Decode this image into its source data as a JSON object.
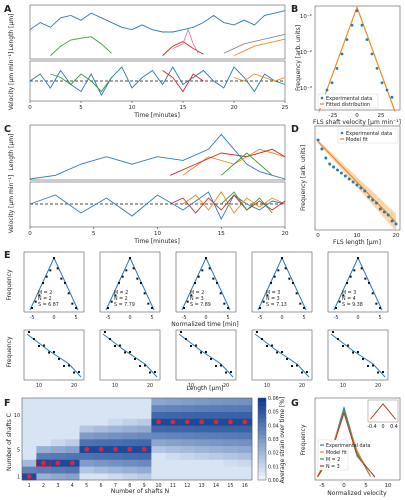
{
  "figure": {
    "panel_labels": [
      "A",
      "B",
      "C",
      "D",
      "E",
      "F",
      "G"
    ],
    "panel_a": {
      "ylabel_top": "Length [μm]",
      "ylabel_bottom": "Velocity [μm min⁻¹]",
      "xlabel": "Time [minutes]",
      "xticks": [
        "0",
        "5",
        "10",
        "15",
        "20",
        "25"
      ]
    },
    "panel_b": {
      "ylabel": "Frequency [arb. units]",
      "xlabel": "FLS shaft velocity [μm min⁻¹]",
      "xticks": [
        "-25",
        "0",
        "25"
      ],
      "yticks": [
        "10⁻¹",
        "10⁻²",
        "10⁻³"
      ],
      "legend": [
        "Experimental data",
        "Fitted distribution"
      ]
    },
    "panel_c": {
      "ylabel_top": "Length [μm]",
      "ylabel_bottom": "Velocity [μm min⁻¹]",
      "xlabel": "Time [minutes]",
      "xticks": [
        "0",
        "5",
        "10",
        "15",
        "20"
      ]
    },
    "panel_d": {
      "ylabel": "Frequency [arb. units]",
      "xlabel": "FLS length [μm]",
      "xticks": [
        "0",
        "10",
        "20"
      ],
      "legend": [
        "Experimental data",
        "Model fit"
      ]
    },
    "panel_e": {
      "ylabel_top": "Frequency",
      "xlabel_top": "Normalized time [min]",
      "ylabel_bottom": "Frequency",
      "xlabel_bottom": "Length [μm]",
      "xticks_top": [
        "-5",
        "0",
        "5"
      ],
      "xticks_bottom": [
        "10",
        "20"
      ],
      "stats": [
        {
          "m": "M = 2",
          "n": "N = 2",
          "s": "S = 6.87"
        },
        {
          "m": "M = 2",
          "n": "N = 2",
          "s": "S = 7.79"
        },
        {
          "m": "M = 2",
          "n": "N = 3",
          "s": "S = 7.89"
        },
        {
          "m": "M = 3",
          "n": "N = 3",
          "s": "S = 7.13"
        },
        {
          "m": "M = 3",
          "n": "N = 4",
          "s": "S = 9.38"
        }
      ]
    },
    "panel_f": {
      "ylabel": "Number of shafts C",
      "xlabel": "Number of shafts N",
      "yticks": [
        "1",
        "5",
        "10"
      ],
      "xticks": [
        "1",
        "2",
        "3",
        "4",
        "5",
        "6",
        "7",
        "8",
        "9",
        "10",
        "11",
        "12",
        "13",
        "14",
        "15",
        "16"
      ],
      "colorbar_ticks": [
        "0.06",
        "0.05",
        "0.04",
        "0.03",
        "0.02",
        "0.01",
        "0.00"
      ],
      "colorbar_label": "Average strain over time [%]"
    },
    "panel_g": {
      "ylabel": "Frequency",
      "xlabel": "Normalized velocity",
      "xticks": [
        "-5",
        "0",
        "5",
        "10"
      ],
      "legend": [
        "Experimental data",
        "Model fit",
        "M = 2",
        "N = 3"
      ],
      "inset_xticks": [
        "-0.4",
        "0",
        "0.4"
      ]
    }
  },
  "colors": {
    "blue": "#2a7bb5",
    "orange": "#f08a1c",
    "red": "#cf2a2a",
    "green": "#3a9d3a",
    "pink": "#e07aa4",
    "grey": "#8a8a8a",
    "heatmap_low": "#e9f2fb",
    "heatmap_high": "#0b3d91",
    "marker": "#e0253a"
  },
  "chart_data": [
    {
      "type": "line",
      "panel": "A-top",
      "x_range": [
        0,
        25
      ],
      "series": [
        {
          "color": "blue",
          "x": [
            0,
            1,
            2,
            3,
            4,
            5,
            6,
            7,
            8,
            9,
            10,
            11,
            12,
            13,
            14,
            15,
            16,
            17,
            18,
            19,
            20,
            21,
            22,
            23,
            24,
            25
          ],
          "y": [
            6,
            7.5,
            6.5,
            8.5,
            9,
            8,
            9.5,
            8.5,
            7.5,
            6.5,
            6,
            7,
            6,
            5.5,
            5.5,
            6,
            6.5,
            7.5,
            9,
            7.5,
            7,
            8,
            7,
            9,
            9.5,
            10
          ]
        },
        {
          "color": "green",
          "x": [
            2,
            3,
            4,
            5,
            6,
            7,
            8
          ],
          "y": [
            0.5,
            2.5,
            3.8,
            4.2,
            4.5,
            3,
            1
          ]
        },
        {
          "color": "red",
          "x": [
            13,
            14,
            15,
            16,
            17
          ],
          "y": [
            0.5,
            2.5,
            3.5,
            2,
            0.8
          ]
        },
        {
          "color": "pink",
          "x": [
            14,
            15,
            15.5,
            16,
            16.5
          ],
          "y": [
            2,
            3,
            6,
            3,
            1
          ]
        },
        {
          "color": "orange",
          "x": [
            20,
            21,
            22,
            23,
            24,
            25
          ],
          "y": [
            0.5,
            1.5,
            2.5,
            3,
            3.5,
            4
          ]
        },
        {
          "color": "grey",
          "x": [
            19,
            20,
            21,
            22,
            23,
            24,
            25
          ],
          "y": [
            1,
            2,
            3,
            3.5,
            4,
            4.5,
            5
          ]
        }
      ]
    },
    {
      "type": "line",
      "panel": "A-bottom",
      "x_range": [
        0,
        25
      ],
      "series": [
        {
          "color": "blue",
          "x": [
            0,
            1,
            2,
            3,
            4,
            5,
            6,
            7,
            8,
            9,
            10,
            11,
            12,
            13,
            14,
            15,
            16,
            17,
            18,
            19,
            20,
            21,
            22,
            23,
            24,
            25
          ],
          "y": [
            0,
            1,
            -1,
            1.5,
            -0.5,
            -1.5,
            1,
            -2,
            0.5,
            2,
            -1,
            0.5,
            1.5,
            -0.5,
            2,
            -0.5,
            0.5,
            1.5,
            0,
            -1,
            2,
            0.5,
            -1.5,
            1,
            0,
            -0.5
          ]
        },
        {
          "color": "green",
          "x": [
            2,
            3,
            4,
            5,
            6,
            7,
            8
          ],
          "y": [
            1,
            0.5,
            -0.5,
            1,
            0,
            -1.5,
            0.5
          ]
        },
        {
          "color": "red",
          "x": [
            13,
            14,
            15,
            16,
            17
          ],
          "y": [
            1.5,
            0.5,
            -1.5,
            1,
            0
          ]
        },
        {
          "color": "orange",
          "x": [
            20,
            21,
            22,
            23,
            24,
            25
          ],
          "y": [
            0.5,
            0,
            1,
            0.5,
            0,
            0.5
          ]
        }
      ]
    },
    {
      "type": "scatter",
      "panel": "B",
      "x": [
        -35,
        -30,
        -25,
        -20,
        -15,
        -10,
        -5,
        0,
        5,
        10,
        15,
        20,
        25,
        30,
        35
      ],
      "y_log10": [
        -3.2,
        -3,
        -2.8,
        -2.4,
        -2,
        -1.6,
        -1.2,
        -0.8,
        -1.2,
        -1.6,
        -2,
        -2.4,
        -2.8,
        -3,
        -3.2
      ]
    },
    {
      "type": "line",
      "panel": "C-top",
      "x_range": [
        0,
        20
      ],
      "series": [
        {
          "color": "blue",
          "x": [
            0,
            2,
            4,
            6,
            8,
            10,
            12,
            14,
            15,
            16,
            17,
            18,
            19,
            20
          ],
          "y": [
            0,
            0.5,
            2,
            3,
            2,
            3,
            2.5,
            4,
            6,
            4,
            2,
            1,
            0.5,
            0
          ]
        },
        {
          "color": "orange",
          "x": [
            12,
            14,
            16,
            18,
            20
          ],
          "y": [
            0.5,
            3,
            2,
            4,
            3
          ]
        },
        {
          "color": "red",
          "x": [
            11,
            13,
            15,
            17,
            19,
            20
          ],
          "y": [
            0.5,
            2,
            3.5,
            3,
            4,
            3
          ]
        },
        {
          "color": "green",
          "x": [
            15,
            16,
            17,
            18,
            19
          ],
          "y": [
            0.5,
            2,
            3.5,
            2,
            0.5
          ]
        }
      ]
    },
    {
      "type": "scatter",
      "panel": "D",
      "x": [
        0,
        1,
        2,
        3,
        4,
        5,
        6,
        7,
        8,
        9,
        10,
        11,
        12,
        13,
        14,
        15,
        16,
        17,
        18,
        19,
        20
      ],
      "y_log10": [
        -0.5,
        -0.8,
        -1.1,
        -1.3,
        -1.4,
        -1.5,
        -1.6,
        -1.7,
        -1.8,
        -1.9,
        -2,
        -2.1,
        -2.2,
        -2.4,
        -2.5,
        -2.6,
        -2.8,
        -2.9,
        -3,
        -3.2,
        -3.3
      ]
    },
    {
      "type": "heatmap",
      "panel": "F",
      "x_categories": [
        "1",
        "2",
        "3",
        "4",
        "5",
        "6",
        "7",
        "8",
        "9",
        "10",
        "11",
        "12",
        "13",
        "14",
        "15",
        "16"
      ],
      "y_categories": [
        "1",
        "2",
        "3",
        "4",
        "5",
        "6",
        "7",
        "8",
        "9",
        "10",
        "11",
        "12"
      ],
      "optimum_markers": [
        [
          1,
          1
        ],
        [
          2,
          3
        ],
        [
          3,
          3
        ],
        [
          4,
          3
        ],
        [
          5,
          5
        ],
        [
          6,
          5
        ],
        [
          7,
          5
        ],
        [
          8,
          5
        ],
        [
          9,
          5
        ],
        [
          10,
          9
        ],
        [
          11,
          9
        ],
        [
          12,
          9
        ],
        [
          13,
          9
        ],
        [
          14,
          9
        ],
        [
          15,
          9
        ],
        [
          16,
          9
        ]
      ],
      "value_range": [
        0,
        0.06
      ]
    }
  ]
}
